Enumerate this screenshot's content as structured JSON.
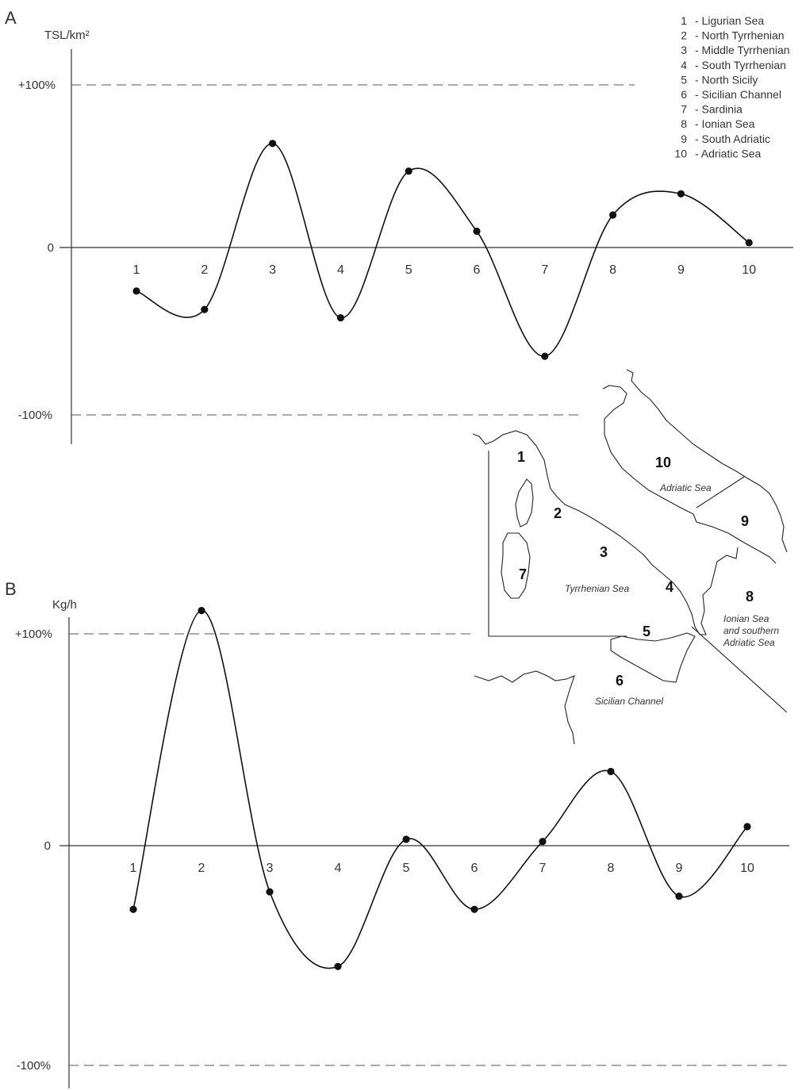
{
  "chart_data": [
    {
      "type": "line",
      "panel_label": "A",
      "ylabel": "TSL/km²",
      "categories": [
        "1",
        "2",
        "3",
        "4",
        "5",
        "6",
        "7",
        "8",
        "9",
        "10"
      ],
      "values": [
        -26,
        -37,
        64,
        -42,
        47,
        10,
        -65,
        20,
        33,
        3
      ],
      "ylim": [
        -100,
        100
      ],
      "ytick_labels": {
        "top": "+100%",
        "zero": "0",
        "bottom": "-100%"
      },
      "grid": false
    },
    {
      "type": "line",
      "panel_label": "B",
      "ylabel": "Kg/h",
      "categories": [
        "1",
        "2",
        "3",
        "4",
        "5",
        "6",
        "7",
        "8",
        "9",
        "10"
      ],
      "values": [
        -29,
        111,
        -21,
        -55,
        3,
        -29,
        2,
        35,
        -23,
        9
      ],
      "ylim": [
        -100,
        100
      ],
      "ytick_labels": {
        "top": "+100%",
        "zero": "0",
        "bottom": "-100%"
      },
      "grid": false
    }
  ],
  "legend": {
    "placement": "top-right",
    "items": [
      {
        "num": "1",
        "label": "- Ligurian Sea"
      },
      {
        "num": "2",
        "label": "- North Tyrrhenian"
      },
      {
        "num": "3",
        "label": "- Middle Tyrrhenian"
      },
      {
        "num": "4",
        "label": "- South Tyrrhenian"
      },
      {
        "num": "5",
        "label": "- North Sicily"
      },
      {
        "num": "6",
        "label": "- Sicilian Channel"
      },
      {
        "num": "7",
        "label": "- Sardinia"
      },
      {
        "num": "8",
        "label": "- Ionian Sea"
      },
      {
        "num": "9",
        "label": "- South Adriatic"
      },
      {
        "num": "10",
        "label": "- Adriatic Sea"
      }
    ]
  },
  "map": {
    "region_numbers": [
      "1",
      "2",
      "3",
      "4",
      "5",
      "6",
      "7",
      "8",
      "9",
      "10"
    ],
    "sea_labels": {
      "tyrrhenian": "Tyrrhenian Sea",
      "adriatic": "Adriatic Sea",
      "ionian_line1": "Ionian Sea",
      "ionian_line2": "and southern",
      "ionian_line3": "Adriatic Sea",
      "sicilian": "Sicilian Channel"
    }
  },
  "colors": {
    "line": "#111111",
    "axis": "#333333",
    "background": "#ffffff"
  }
}
